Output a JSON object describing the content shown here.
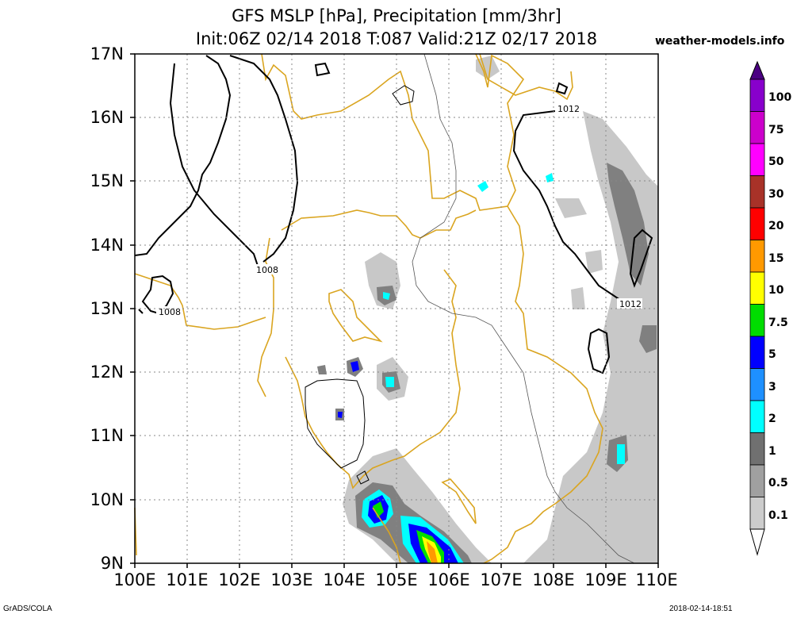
{
  "title_line1": "GFS MSLP [hPa], Precipitation [mm/3hr]",
  "title_line2": "Init:06Z 02/14 2018 T:087 Valid:21Z 02/17 2018",
  "site": "weather-models.info",
  "footer_left": "GrADS/COLA",
  "footer_right": "2018-02-14-18:51",
  "lat_labels": [
    "17N",
    "16N",
    "15N",
    "14N",
    "13N",
    "12N",
    "11N",
    "10N",
    "9N"
  ],
  "lon_labels": [
    "100E",
    "101E",
    "102E",
    "103E",
    "104E",
    "105E",
    "106E",
    "107E",
    "108E",
    "109E",
    "110E"
  ],
  "isobar_labels": [
    "1008",
    "1008",
    "1012",
    "1012"
  ],
  "colorbar": {
    "labels": [
      "100",
      "75",
      "50",
      "30",
      "20",
      "15",
      "10",
      "7.5",
      "5",
      "3",
      "2",
      "1",
      "0.5",
      "0.1"
    ],
    "colors": [
      "#8800cc",
      "#cc00cc",
      "#ff00ff",
      "#a83228",
      "#ff0000",
      "#ff9900",
      "#ffff00",
      "#00dd00",
      "#0000ff",
      "#1e90ff",
      "#00ffff",
      "#707070",
      "#a0a0a0",
      "#cccccc"
    ]
  }
}
